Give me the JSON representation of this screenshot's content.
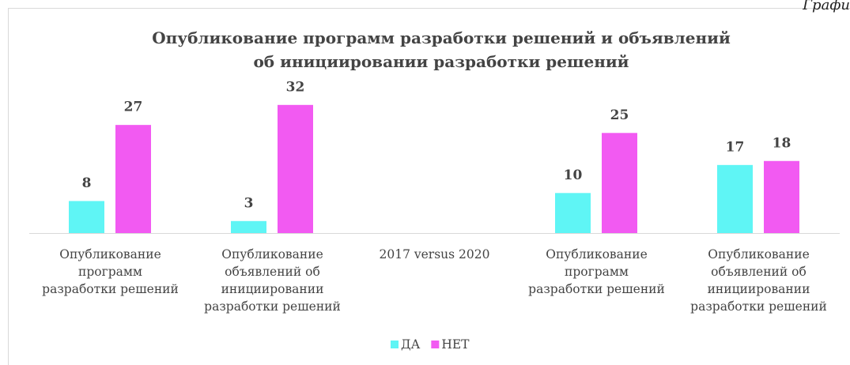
{
  "chart_data": {
    "type": "bar",
    "caption": "Графи",
    "title": "Опубликование программ разработки решений и объявлений\nоб инициировании разработки решений",
    "categories": [
      "Опубликование\nпрограмм\nразработки решений",
      "Опубликование\nобъявлений об\nинициировании\nразработки решений",
      "2017 versus 2020",
      "Опубликование\nпрограмм\nразработки решений",
      "Опубликование\nобъявлений об\nинициировании\nразработки решений"
    ],
    "series": [
      {
        "name": "ДА",
        "color": "#5ff5f5",
        "values": [
          8,
          3,
          null,
          10,
          17
        ]
      },
      {
        "name": "НЕТ",
        "color": "#f25af2",
        "values": [
          27,
          32,
          null,
          25,
          18
        ]
      }
    ],
    "ylim": [
      0,
      35
    ],
    "legend": "bottom"
  }
}
